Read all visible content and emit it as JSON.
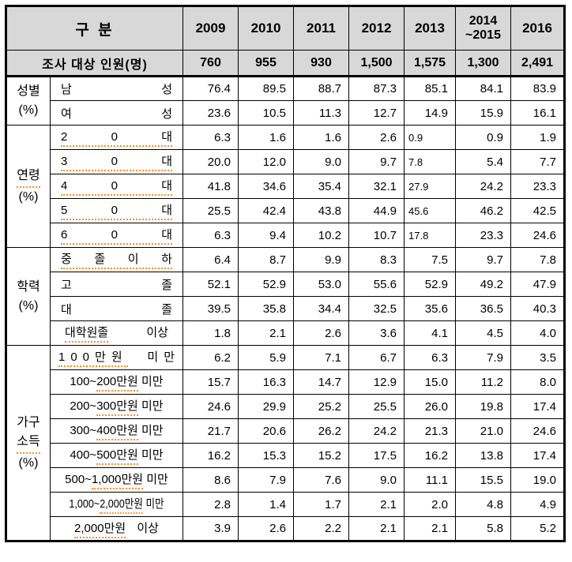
{
  "colors": {
    "header_bg": "#d8d8d8",
    "underline": "#ff8c28",
    "border": "#000000",
    "page_bg": "#ffffff",
    "text": "#000000"
  },
  "header": {
    "category_label": "구 분",
    "years": [
      "2009",
      "2010",
      "2011",
      "2012",
      "2013",
      "2014\n~2015",
      "2016"
    ]
  },
  "survey_row": {
    "label": "조사 대상 인원(명)",
    "values": [
      "760",
      "955",
      "930",
      "1,500",
      "1,575",
      "1,300",
      "2,491"
    ]
  },
  "sections": [
    {
      "id": "gender",
      "label_lines": [
        "성별",
        "(%)"
      ],
      "rows": [
        {
          "parts": [
            "남",
            "성"
          ],
          "values": [
            "76.4",
            "89.5",
            "88.7",
            "87.3",
            "85.1",
            "84.1",
            "83.9"
          ]
        },
        {
          "parts": [
            "여",
            "성"
          ],
          "values": [
            "23.6",
            "10.5",
            "11.3",
            "12.7",
            "14.9",
            "15.9",
            "16.1"
          ]
        }
      ]
    },
    {
      "id": "age",
      "label_lines": [
        "연령",
        "(%)"
      ],
      "rows": [
        {
          "parts": [
            "2",
            "0",
            "대"
          ],
          "values": [
            "6.3",
            "1.6",
            "1.6",
            "2.6",
            "0.9",
            "0.9",
            "1.9"
          ]
        },
        {
          "parts": [
            "3",
            "0",
            "대"
          ],
          "values": [
            "20.0",
            "12.0",
            "9.0",
            "9.7",
            "7.8",
            "5.4",
            "7.7"
          ]
        },
        {
          "parts": [
            "4",
            "0",
            "대"
          ],
          "values": [
            "41.8",
            "34.6",
            "35.4",
            "32.1",
            "27.9",
            "24.2",
            "23.3"
          ]
        },
        {
          "parts": [
            "5",
            "0",
            "대"
          ],
          "values": [
            "25.5",
            "42.4",
            "43.8",
            "44.9",
            "45.6",
            "46.2",
            "42.5"
          ]
        },
        {
          "parts": [
            "6",
            "0",
            "대"
          ],
          "values": [
            "6.3",
            "9.4",
            "10.2",
            "10.7",
            "17.8",
            "23.3",
            "24.6"
          ]
        }
      ]
    },
    {
      "id": "education",
      "label_lines": [
        "학력",
        "(%)"
      ],
      "rows": [
        {
          "parts": [
            "중",
            "졸",
            "이",
            "하"
          ],
          "values": [
            "6.4",
            "8.7",
            "9.9",
            "8.3",
            "7.5",
            "9.7",
            "7.8"
          ]
        },
        {
          "parts": [
            "고",
            "졸"
          ],
          "values": [
            "52.1",
            "52.9",
            "53.0",
            "55.6",
            "52.9",
            "49.2",
            "47.9"
          ]
        },
        {
          "parts": [
            "대",
            "졸"
          ],
          "values": [
            "39.5",
            "35.8",
            "34.4",
            "32.5",
            "35.6",
            "36.5",
            "40.3"
          ]
        },
        {
          "parts": [
            "대학원졸",
            "이상"
          ],
          "values": [
            "1.8",
            "2.1",
            "2.6",
            "3.6",
            "4.1",
            "4.5",
            "4.0"
          ]
        }
      ]
    },
    {
      "id": "income",
      "label_lines": [
        "가구",
        "소득",
        "(%)"
      ],
      "rows": [
        {
          "parts": [
            "100만원",
            "미만"
          ],
          "values": [
            "6.2",
            "5.9",
            "7.1",
            "6.7",
            "6.3",
            "7.9",
            "3.5"
          ]
        },
        {
          "parts": [
            "100~",
            "200만원",
            " 미만"
          ],
          "values": [
            "15.7",
            "16.3",
            "14.7",
            "12.9",
            "15.0",
            "11.2",
            "8.0"
          ]
        },
        {
          "parts": [
            "200~",
            "300만원",
            " 미만"
          ],
          "values": [
            "24.6",
            "29.9",
            "25.2",
            "25.5",
            "26.0",
            "19.8",
            "17.4"
          ]
        },
        {
          "parts": [
            "300~",
            "400만원",
            " 미만"
          ],
          "values": [
            "21.7",
            "20.6",
            "26.2",
            "24.2",
            "21.3",
            "21.0",
            "24.6"
          ]
        },
        {
          "parts": [
            "400~",
            "500만원",
            " 미만"
          ],
          "values": [
            "16.2",
            "15.3",
            "15.2",
            "17.5",
            "16.2",
            "13.8",
            "17.4"
          ]
        },
        {
          "parts": [
            "500~",
            "1,000만원",
            " 미만"
          ],
          "values": [
            "8.6",
            "7.9",
            "7.6",
            "9.0",
            "11.1",
            "15.5",
            "19.0"
          ]
        },
        {
          "parts": [
            "1,000~",
            "2,000만원",
            " 미만"
          ],
          "values": [
            "2.8",
            "1.4",
            "1.7",
            "2.1",
            "2.0",
            "4.8",
            "4.9"
          ]
        },
        {
          "parts": [
            "2,000만원",
            " 이상"
          ],
          "values": [
            "3.9",
            "2.6",
            "2.2",
            "2.1",
            "2.1",
            "5.8",
            "5.2"
          ]
        }
      ]
    }
  ]
}
